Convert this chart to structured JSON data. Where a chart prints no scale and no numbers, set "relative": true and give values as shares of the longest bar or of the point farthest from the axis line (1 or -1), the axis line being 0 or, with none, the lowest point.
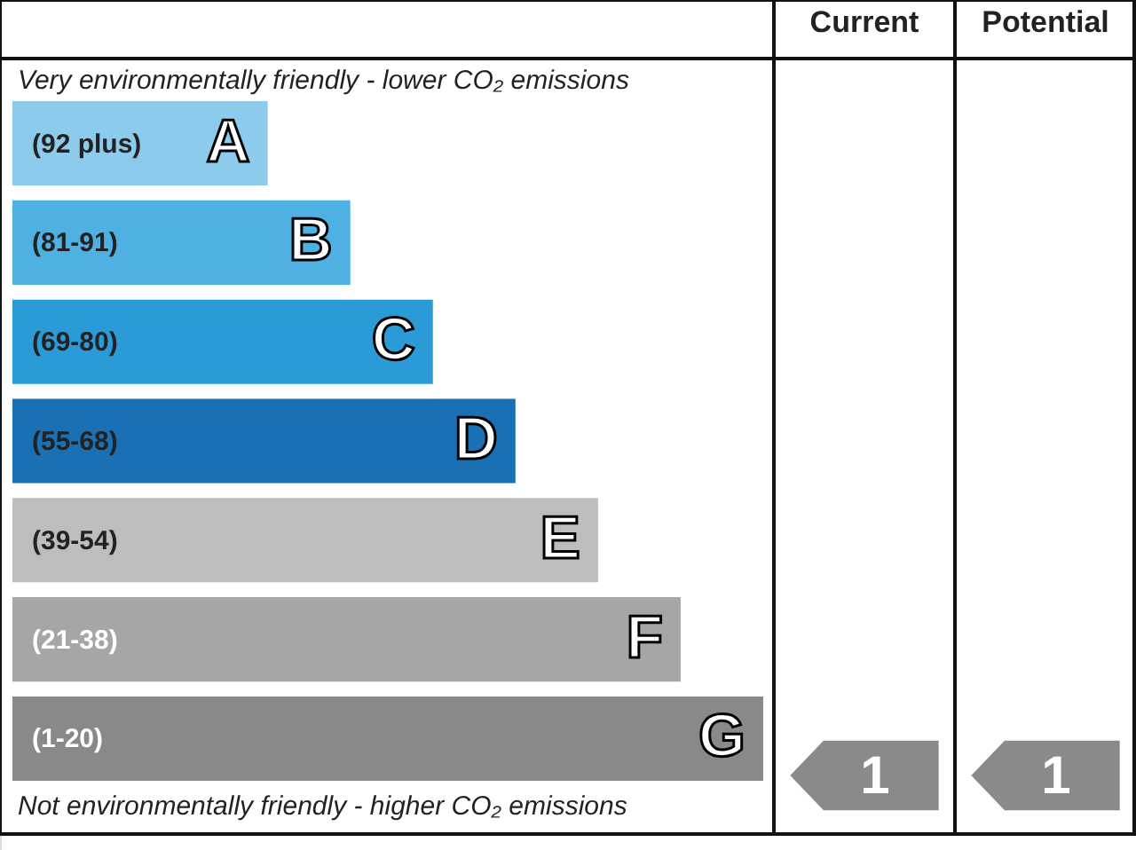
{
  "chart_data": {
    "type": "bar",
    "orientation": "horizontal",
    "relative": true,
    "title": "Very environmentally friendly - lower CO₂ emissions",
    "categories": [
      "A",
      "B",
      "C",
      "D",
      "E",
      "F",
      "G"
    ],
    "values": [
      0.34,
      0.45,
      0.56,
      0.67,
      0.78,
      0.89,
      1.0
    ],
    "colors": [
      "#8ccbec",
      "#4fb1e2",
      "#2b9bd7",
      "#1a70b5",
      "#bdbdbd",
      "#a6a6a6",
      "#898989"
    ],
    "annotations": [
      "Not environmentally friendly - higher CO₂ emissions",
      "Current",
      "Potential",
      "(92 plus)",
      "(81-91)",
      "(69-80)",
      "(55-68)",
      "(39-54)",
      "(21-38)",
      "(1-20)",
      "1",
      "1"
    ]
  }
}
